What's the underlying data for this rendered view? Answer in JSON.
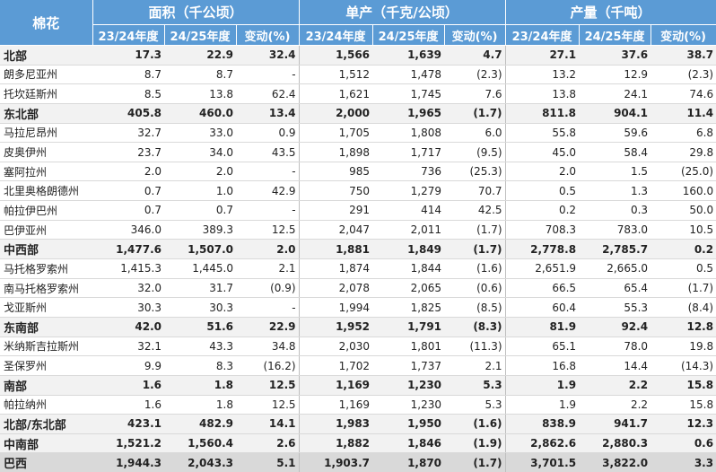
{
  "table": {
    "corner_label": "棉花",
    "groups": [
      "面积（千公顷）",
      "单产（千克/公顷）",
      "产量（千吨）"
    ],
    "subheaders": [
      "23/24年度",
      "24/25年度",
      "变动(%)",
      "23/24年度",
      "24/25年度",
      "变动(%)",
      "23/24年度",
      "24/25年度",
      "变动(%)"
    ],
    "rows": [
      {
        "kind": "region",
        "name": "北部",
        "values": [
          "17.3",
          "22.9",
          "32.4",
          "1,566",
          "1,639",
          "4.7",
          "27.1",
          "37.6",
          "38.7"
        ]
      },
      {
        "kind": "state",
        "name": "朗多尼亚州",
        "values": [
          "8.7",
          "8.7",
          "-",
          "1,512",
          "1,478",
          "(2.3)",
          "13.2",
          "12.9",
          "(2.3)"
        ]
      },
      {
        "kind": "state",
        "name": "托坎廷斯州",
        "values": [
          "8.5",
          "13.8",
          "62.4",
          "1,621",
          "1,745",
          "7.6",
          "13.8",
          "24.1",
          "74.6"
        ]
      },
      {
        "kind": "region",
        "name": "东北部",
        "values": [
          "405.8",
          "460.0",
          "13.4",
          "2,000",
          "1,965",
          "(1.7)",
          "811.8",
          "904.1",
          "11.4"
        ]
      },
      {
        "kind": "state",
        "name": "马拉尼昂州",
        "values": [
          "32.7",
          "33.0",
          "0.9",
          "1,705",
          "1,808",
          "6.0",
          "55.8",
          "59.6",
          "6.8"
        ]
      },
      {
        "kind": "state",
        "name": "皮奥伊州",
        "values": [
          "23.7",
          "34.0",
          "43.5",
          "1,898",
          "1,717",
          "(9.5)",
          "45.0",
          "58.4",
          "29.8"
        ]
      },
      {
        "kind": "state",
        "name": "塞阿拉州",
        "values": [
          "2.0",
          "2.0",
          "-",
          "985",
          "736",
          "(25.3)",
          "2.0",
          "1.5",
          "(25.0)"
        ]
      },
      {
        "kind": "state",
        "name": "北里奥格朗德州",
        "values": [
          "0.7",
          "1.0",
          "42.9",
          "750",
          "1,279",
          "70.7",
          "0.5",
          "1.3",
          "160.0"
        ]
      },
      {
        "kind": "state",
        "name": "帕拉伊巴州",
        "values": [
          "0.7",
          "0.7",
          "-",
          "291",
          "414",
          "42.5",
          "0.2",
          "0.3",
          "50.0"
        ]
      },
      {
        "kind": "state",
        "name": "巴伊亚州",
        "values": [
          "346.0",
          "389.3",
          "12.5",
          "2,047",
          "2,011",
          "(1.7)",
          "708.3",
          "783.0",
          "10.5"
        ]
      },
      {
        "kind": "region",
        "name": "中西部",
        "values": [
          "1,477.6",
          "1,507.0",
          "2.0",
          "1,881",
          "1,849",
          "(1.7)",
          "2,778.8",
          "2,785.7",
          "0.2"
        ]
      },
      {
        "kind": "state",
        "name": "马托格罗索州",
        "values": [
          "1,415.3",
          "1,445.0",
          "2.1",
          "1,874",
          "1,844",
          "(1.6)",
          "2,651.9",
          "2,665.0",
          "0.5"
        ]
      },
      {
        "kind": "state",
        "name": "南马托格罗索州",
        "values": [
          "32.0",
          "31.7",
          "(0.9)",
          "2,078",
          "2,065",
          "(0.6)",
          "66.5",
          "65.4",
          "(1.7)"
        ]
      },
      {
        "kind": "state",
        "name": "戈亚斯州",
        "values": [
          "30.3",
          "30.3",
          "-",
          "1,994",
          "1,825",
          "(8.5)",
          "60.4",
          "55.3",
          "(8.4)"
        ]
      },
      {
        "kind": "region",
        "name": "东南部",
        "values": [
          "42.0",
          "51.6",
          "22.9",
          "1,952",
          "1,791",
          "(8.3)",
          "81.9",
          "92.4",
          "12.8"
        ]
      },
      {
        "kind": "state",
        "name": "米纳斯吉拉斯州",
        "values": [
          "32.1",
          "43.3",
          "34.8",
          "2,030",
          "1,801",
          "(11.3)",
          "65.1",
          "78.0",
          "19.8"
        ]
      },
      {
        "kind": "state",
        "name": "圣保罗州",
        "values": [
          "9.9",
          "8.3",
          "(16.2)",
          "1,702",
          "1,737",
          "2.1",
          "16.8",
          "14.4",
          "(14.3)"
        ]
      },
      {
        "kind": "region",
        "name": "南部",
        "values": [
          "1.6",
          "1.8",
          "12.5",
          "1,169",
          "1,230",
          "5.3",
          "1.9",
          "2.2",
          "15.8"
        ]
      },
      {
        "kind": "state",
        "name": "帕拉纳州",
        "values": [
          "1.6",
          "1.8",
          "12.5",
          "1,169",
          "1,230",
          "5.3",
          "1.9",
          "2.2",
          "15.8"
        ]
      },
      {
        "kind": "region",
        "name": "北部/东北部",
        "values": [
          "423.1",
          "482.9",
          "14.1",
          "1,983",
          "1,950",
          "(1.6)",
          "838.9",
          "941.7",
          "12.3"
        ]
      },
      {
        "kind": "region",
        "name": "中南部",
        "values": [
          "1,521.2",
          "1,560.4",
          "2.6",
          "1,882",
          "1,846",
          "(1.9)",
          "2,862.6",
          "2,880.3",
          "0.6"
        ]
      },
      {
        "kind": "total",
        "name": "巴西",
        "values": [
          "1,944.3",
          "2,043.3",
          "5.1",
          "1,903.7",
          "1,870",
          "(1.7)",
          "3,701.5",
          "3,822.0",
          "3.3"
        ]
      }
    ]
  },
  "colors": {
    "header_bg": "#5b9bd5",
    "region_row_bg": "#f2f2f2",
    "total_row_bg": "#d9d9d9"
  }
}
